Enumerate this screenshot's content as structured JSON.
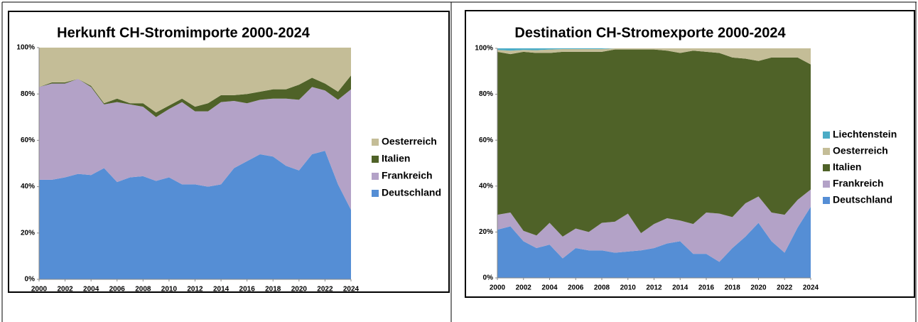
{
  "chart_data": [
    {
      "type": "stacked_area",
      "title": "Herkunft CH-Stromimporte 2000-2024",
      "x": [
        2000,
        2001,
        2002,
        2003,
        2004,
        2005,
        2006,
        2007,
        2008,
        2009,
        2010,
        2011,
        2012,
        2013,
        2014,
        2015,
        2016,
        2017,
        2018,
        2019,
        2020,
        2021,
        2022,
        2023,
        2024
      ],
      "xlim": [
        2000,
        2024
      ],
      "xticks": [
        2000,
        2002,
        2004,
        2006,
        2008,
        2010,
        2012,
        2014,
        2016,
        2018,
        2020,
        2022,
        2024
      ],
      "ylim": [
        0,
        100
      ],
      "yticks": [
        {
          "value": 0,
          "label": "0%"
        },
        {
          "value": 20,
          "label": "20%"
        },
        {
          "value": 40,
          "label": "40%"
        },
        {
          "value": 60,
          "label": "60%"
        },
        {
          "value": 80,
          "label": "80%"
        },
        {
          "value": 100,
          "label": "100%"
        }
      ],
      "legend": "right",
      "series": [
        {
          "name": "Deutschland",
          "color": "#558ed5",
          "values": [
            43,
            43,
            44,
            45.5,
            45,
            48,
            42,
            44,
            44.5,
            42.5,
            44,
            41,
            41,
            40,
            41,
            48,
            51,
            54,
            53,
            49,
            47,
            54,
            55.5,
            41,
            30
          ]
        },
        {
          "name": "Frankreich",
          "color": "#b3a2c7",
          "values": [
            40,
            41.5,
            40.5,
            41,
            38,
            27.5,
            34.5,
            31.5,
            30,
            27.5,
            29.5,
            35.5,
            31.5,
            32.5,
            35.5,
            29,
            25,
            23.5,
            25,
            29,
            30.5,
            29,
            26,
            36.5,
            52
          ]
        },
        {
          "name": "Italien",
          "color": "#4f6228",
          "values": [
            0,
            0.5,
            0.5,
            0,
            0.5,
            0.5,
            1.5,
            0.5,
            1.5,
            2,
            1.5,
            1.5,
            2,
            3.5,
            3,
            2.5,
            4,
            3.5,
            4,
            4,
            6.5,
            4,
            3,
            3.5,
            6
          ]
        },
        {
          "name": "Oesterreich",
          "color": "#c4bd97",
          "values": [
            17,
            15,
            15,
            13.5,
            16.5,
            24,
            22,
            24,
            24,
            28,
            25,
            22,
            25.5,
            24,
            20.5,
            20.5,
            20,
            19,
            18,
            18,
            16,
            13,
            15.5,
            19,
            12
          ]
        }
      ]
    },
    {
      "type": "stacked_area",
      "title": "Destination CH-Stromexporte 2000-2024",
      "x": [
        2000,
        2001,
        2002,
        2003,
        2004,
        2005,
        2006,
        2007,
        2008,
        2009,
        2010,
        2011,
        2012,
        2013,
        2014,
        2015,
        2016,
        2017,
        2018,
        2019,
        2020,
        2021,
        2022,
        2023,
        2024
      ],
      "xlim": [
        2000,
        2024
      ],
      "xticks": [
        2000,
        2002,
        2004,
        2006,
        2008,
        2010,
        2012,
        2014,
        2016,
        2018,
        2020,
        2022,
        2024
      ],
      "ylim": [
        0,
        100
      ],
      "yticks": [
        {
          "value": 0,
          "label": "0%"
        },
        {
          "value": 20,
          "label": "20%"
        },
        {
          "value": 40,
          "label": "40%"
        },
        {
          "value": 60,
          "label": "60%"
        },
        {
          "value": 80,
          "label": "80%"
        },
        {
          "value": 100,
          "label": "100%"
        }
      ],
      "legend": "right",
      "series": [
        {
          "name": "Deutschland",
          "color": "#558ed5",
          "values": [
            21,
            22.5,
            16,
            13,
            14.5,
            8.5,
            13,
            12,
            12,
            11,
            11.5,
            12,
            13,
            15,
            16,
            10.5,
            10.5,
            7,
            13,
            18,
            24,
            16,
            11,
            22,
            31
          ]
        },
        {
          "name": "Frankreich",
          "color": "#b3a2c7",
          "values": [
            6.5,
            6,
            4.5,
            5.5,
            9.5,
            9.5,
            8.5,
            8,
            12,
            13.5,
            16.5,
            7.5,
            10.5,
            11,
            9,
            13,
            18,
            21,
            13.5,
            14.5,
            11.5,
            12.5,
            16.5,
            12,
            7.5
          ]
        },
        {
          "name": "Italien",
          "color": "#4f6228",
          "values": [
            71,
            69,
            78,
            79.5,
            74,
            80.5,
            77,
            78.5,
            74.5,
            75,
            71.5,
            80,
            76,
            73,
            73,
            75.5,
            70,
            70,
            69.5,
            63,
            59,
            67.5,
            68.5,
            62,
            54.5
          ]
        },
        {
          "name": "Oesterreich",
          "color": "#c4bd97",
          "values": [
            0.8,
            1.5,
            0.8,
            1.2,
            1.5,
            1.2,
            1.2,
            1.2,
            1.2,
            0.5,
            0.5,
            0.5,
            0.5,
            1,
            2,
            1,
            1.5,
            2,
            4,
            4.5,
            5.5,
            4,
            4,
            4,
            7
          ]
        },
        {
          "name": "Liechtenstein",
          "color": "#4bacc6",
          "values": [
            0.7,
            1,
            0.7,
            0.8,
            0.5,
            0.3,
            0.3,
            0.3,
            0.3,
            0,
            0,
            0,
            0,
            0,
            0,
            0,
            0,
            0,
            0,
            0,
            0,
            0,
            0,
            0,
            0
          ]
        }
      ]
    }
  ]
}
